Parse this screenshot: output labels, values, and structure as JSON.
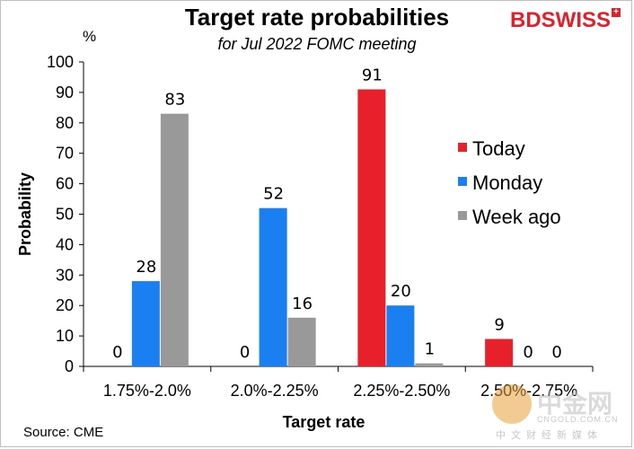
{
  "header": {
    "title": "Target rate probabilities",
    "subtitle": "for Jul 2022 FOMC meeting",
    "logo_text": "BDSWISS",
    "logo_mark": "+",
    "unit": "%"
  },
  "footer": {
    "source": "Source: CME"
  },
  "watermark": {
    "text": "中金网",
    "sub": "CNGOLD.COM.CN",
    "sub2": "中文财经新媒体"
  },
  "chart_data": {
    "type": "bar",
    "title": "Target rate probabilities",
    "subtitle": "for Jul 2022 FOMC meeting",
    "xlabel": "Target rate",
    "ylabel": "Probability",
    "ylim": [
      0,
      100
    ],
    "yticks": [
      0,
      10,
      20,
      30,
      40,
      50,
      60,
      70,
      80,
      90,
      100
    ],
    "categories": [
      "1.75%-2.0%",
      "2.0%-2.25%",
      "2.25%-2.50%",
      "2.50%-2.75%"
    ],
    "series": [
      {
        "name": "Today",
        "color": "#e8202a",
        "values": [
          0,
          0,
          91,
          9
        ]
      },
      {
        "name": "Monday",
        "color": "#1a7ff0",
        "values": [
          28,
          52,
          20,
          0
        ]
      },
      {
        "name": "Week ago",
        "color": "#999999",
        "values": [
          83,
          16,
          1,
          0
        ]
      }
    ],
    "legend_position": "right"
  }
}
